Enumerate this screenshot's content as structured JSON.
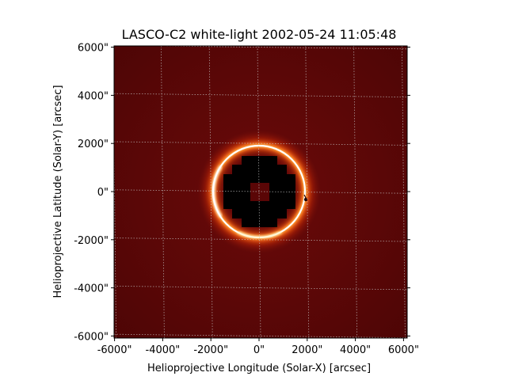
{
  "figure": {
    "title": "LASCO-C2 white-light 2002-05-24 11:05:48",
    "xlabel": "Helioprojective Longitude (Solar-X) [arcsec]",
    "ylabel": "Helioprojective Latitude (Solar-Y) [arcsec]"
  },
  "axes": {
    "xlim": [
      -6000,
      6000
    ],
    "ylim": [
      -6000,
      6000
    ],
    "x_ticks": [
      {
        "value": -6000,
        "label": "-6000\""
      },
      {
        "value": -4000,
        "label": "-4000\""
      },
      {
        "value": -2000,
        "label": "-2000\""
      },
      {
        "value": 0,
        "label": "0\""
      },
      {
        "value": 2000,
        "label": "2000\""
      },
      {
        "value": 4000,
        "label": "4000\""
      },
      {
        "value": 6000,
        "label": "6000\""
      }
    ],
    "y_ticks": [
      {
        "value": 6000,
        "label": "6000\""
      },
      {
        "value": 4000,
        "label": "4000\""
      },
      {
        "value": 2000,
        "label": "2000\""
      },
      {
        "value": 0,
        "label": "0\""
      },
      {
        "value": -2000,
        "label": "-2000\""
      },
      {
        "value": -4000,
        "label": "-4000\""
      },
      {
        "value": -6000,
        "label": "-6000\""
      }
    ],
    "grid": true
  },
  "image": {
    "colormap": "soho-lasco-c2",
    "background_color": "#560606",
    "ring_color": "#ffffff",
    "glow_color": "#ff5a10",
    "occulter_color": "#000000",
    "center_patch_color": "#5a0606"
  }
}
